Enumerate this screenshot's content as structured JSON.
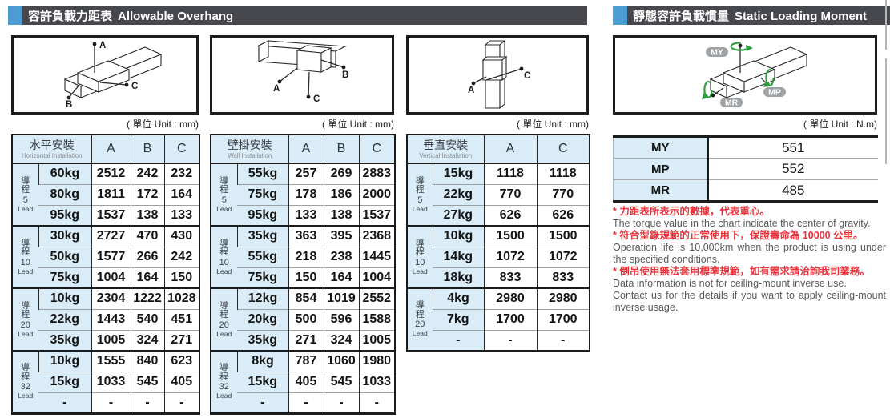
{
  "headers": {
    "left": {
      "zh": "容許負載力距表",
      "en": "Allowable Overhang"
    },
    "right": {
      "zh": "靜態容許負載慣量",
      "en": "Static Loading Moment"
    }
  },
  "units": {
    "mm": "( 單位 Unit : mm)",
    "nm": "( 單位 Unit : N.m)"
  },
  "diagrams": {
    "horizontal": {
      "a": "A",
      "b": "B",
      "c": "C"
    },
    "wall": {
      "a": "A",
      "b": "B",
      "c": "C"
    },
    "vertical": {
      "a": "A",
      "c": "C"
    },
    "moment": {
      "my": "MY",
      "mp": "MP",
      "mr": "MR"
    }
  },
  "lead": {
    "chars": [
      "導",
      "程"
    ],
    "en": "Lead"
  },
  "tables": [
    {
      "id": "horizontal",
      "zh": "水平安裝",
      "en": "Horizontal Installation",
      "columns": [
        "A",
        "B",
        "C"
      ],
      "groups": [
        {
          "lead": "5",
          "rows": [
            [
              "60kg",
              "2512",
              "242",
              "232"
            ],
            [
              "80kg",
              "1811",
              "172",
              "164"
            ],
            [
              "95kg",
              "1537",
              "138",
              "133"
            ]
          ]
        },
        {
          "lead": "10",
          "rows": [
            [
              "30kg",
              "2727",
              "470",
              "430"
            ],
            [
              "50kg",
              "1577",
              "266",
              "242"
            ],
            [
              "75kg",
              "1004",
              "164",
              "150"
            ]
          ]
        },
        {
          "lead": "20",
          "rows": [
            [
              "10kg",
              "2304",
              "1222",
              "1028"
            ],
            [
              "22kg",
              "1443",
              "540",
              "451"
            ],
            [
              "35kg",
              "1005",
              "324",
              "271"
            ]
          ]
        },
        {
          "lead": "32",
          "rows": [
            [
              "10kg",
              "1555",
              "840",
              "623"
            ],
            [
              "15kg",
              "1033",
              "545",
              "405"
            ],
            [
              "-",
              "-",
              "-",
              "-"
            ]
          ]
        }
      ]
    },
    {
      "id": "wall",
      "zh": "壁掛安裝",
      "en": "Wall Installation",
      "columns": [
        "A",
        "B",
        "C"
      ],
      "groups": [
        {
          "lead": "5",
          "rows": [
            [
              "55kg",
              "257",
              "269",
              "2883"
            ],
            [
              "75kg",
              "178",
              "186",
              "2000"
            ],
            [
              "95kg",
              "133",
              "138",
              "1537"
            ]
          ]
        },
        {
          "lead": "10",
          "rows": [
            [
              "35kg",
              "363",
              "395",
              "2368"
            ],
            [
              "55kg",
              "218",
              "238",
              "1445"
            ],
            [
              "75kg",
              "150",
              "164",
              "1004"
            ]
          ]
        },
        {
          "lead": "20",
          "rows": [
            [
              "12kg",
              "854",
              "1019",
              "2552"
            ],
            [
              "20kg",
              "500",
              "596",
              "1588"
            ],
            [
              "35kg",
              "271",
              "324",
              "1005"
            ]
          ]
        },
        {
          "lead": "32",
          "rows": [
            [
              "8kg",
              "787",
              "1060",
              "1980"
            ],
            [
              "15kg",
              "405",
              "545",
              "1033"
            ],
            [
              "-",
              "-",
              "-",
              "-"
            ]
          ]
        }
      ]
    },
    {
      "id": "vertical",
      "zh": "垂直安裝",
      "en": "Vertical Installation",
      "columns": [
        "A",
        "C"
      ],
      "groups": [
        {
          "lead": "5",
          "rows": [
            [
              "15kg",
              "1118",
              "1118"
            ],
            [
              "22kg",
              "770",
              "770"
            ],
            [
              "27kg",
              "626",
              "626"
            ]
          ]
        },
        {
          "lead": "10",
          "rows": [
            [
              "10kg",
              "1500",
              "1500"
            ],
            [
              "14kg",
              "1072",
              "1072"
            ],
            [
              "18kg",
              "833",
              "833"
            ]
          ]
        },
        {
          "lead": "20",
          "rows": [
            [
              "4kg",
              "2980",
              "2980"
            ],
            [
              "7kg",
              "1700",
              "1700"
            ],
            [
              "-",
              "-",
              "-"
            ]
          ]
        }
      ]
    }
  ],
  "moment": {
    "rows": [
      {
        "label": "MY",
        "value": "551"
      },
      {
        "label": "MP",
        "value": "552"
      },
      {
        "label": "MR",
        "value": "485"
      }
    ]
  },
  "notes": [
    {
      "zh": "* 力距表所表示的數據，代表重心。",
      "en": [
        "The torque value in the chart indicate the center of gravity."
      ]
    },
    {
      "zh": "* 符合型錄規範的正常使用下，保證壽命為 10000 公里。",
      "en": [
        "Operation life is 10,000km when the product is using under the specified conditions."
      ]
    },
    {
      "zh": "* 倒吊使用無法套用標準規範，如有需求請洽詢我司業務。",
      "en": [
        "Data information is not for ceiling-mount inverse use.",
        "Contact us for the details if you want to apply ceiling-mount inverse usage."
      ]
    }
  ],
  "colors": {
    "accent_blue": "#4b9cd3",
    "bar_dark": "#46484d",
    "cell_blue": "#d9ecf7",
    "note_red": "#e8333c",
    "arrow_green": "#2f9e41",
    "pill_gray": "#9fa2a5"
  }
}
